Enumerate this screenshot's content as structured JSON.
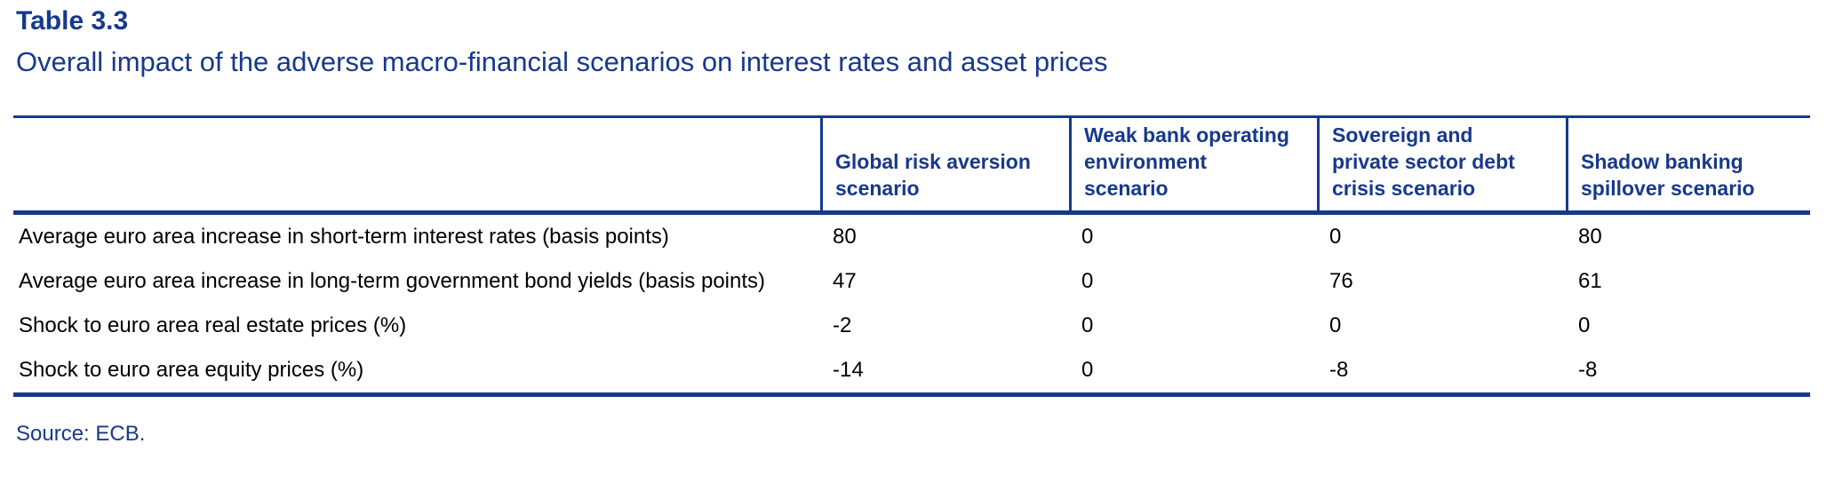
{
  "header": {
    "table_number": "Table 3.3",
    "title": "Overall impact of the adverse macro-financial scenarios on interest rates and asset prices"
  },
  "table": {
    "column_headers": [
      "",
      "Global risk aversion\nscenario",
      "Weak bank operating\nenvironment\nscenario",
      "Sovereign and\nprivate sector debt\ncrisis scenario",
      "Shadow banking\nspillover scenario"
    ],
    "rows": [
      {
        "label": "Average euro area increase in short-term interest rates (basis points)",
        "values": [
          "80",
          "0",
          "0",
          "80"
        ]
      },
      {
        "label": "Average euro area increase in long-term government bond yields (basis points)",
        "values": [
          "47",
          "0",
          "76",
          "61"
        ]
      },
      {
        "label": "Shock to euro area real estate prices (%)",
        "values": [
          "-2",
          "0",
          "0",
          "0"
        ]
      },
      {
        "label": "Shock to euro area equity prices (%)",
        "values": [
          "-14",
          "0",
          "-8",
          "-8"
        ]
      }
    ]
  },
  "footer": {
    "source": "Source: ECB."
  },
  "colors": {
    "accent_blue": "#17398C",
    "body_text": "#000000",
    "background": "#FFFFFF"
  },
  "chart_data": {
    "type": "table",
    "title": "Overall impact of the adverse macro-financial scenarios on interest rates and asset prices",
    "columns": [
      "Global risk aversion scenario",
      "Weak bank operating environment scenario",
      "Sovereign and private sector debt crisis scenario",
      "Shadow banking spillover scenario"
    ],
    "row_labels": [
      "Average euro area increase in short-term interest rates (basis points)",
      "Average euro area increase in long-term government bond yields (basis points)",
      "Shock to euro area real estate prices (%)",
      "Shock to euro area equity prices (%)"
    ],
    "values": [
      [
        80,
        0,
        0,
        80
      ],
      [
        47,
        0,
        76,
        61
      ],
      [
        -2,
        0,
        0,
        0
      ],
      [
        -14,
        0,
        -8,
        -8
      ]
    ]
  }
}
